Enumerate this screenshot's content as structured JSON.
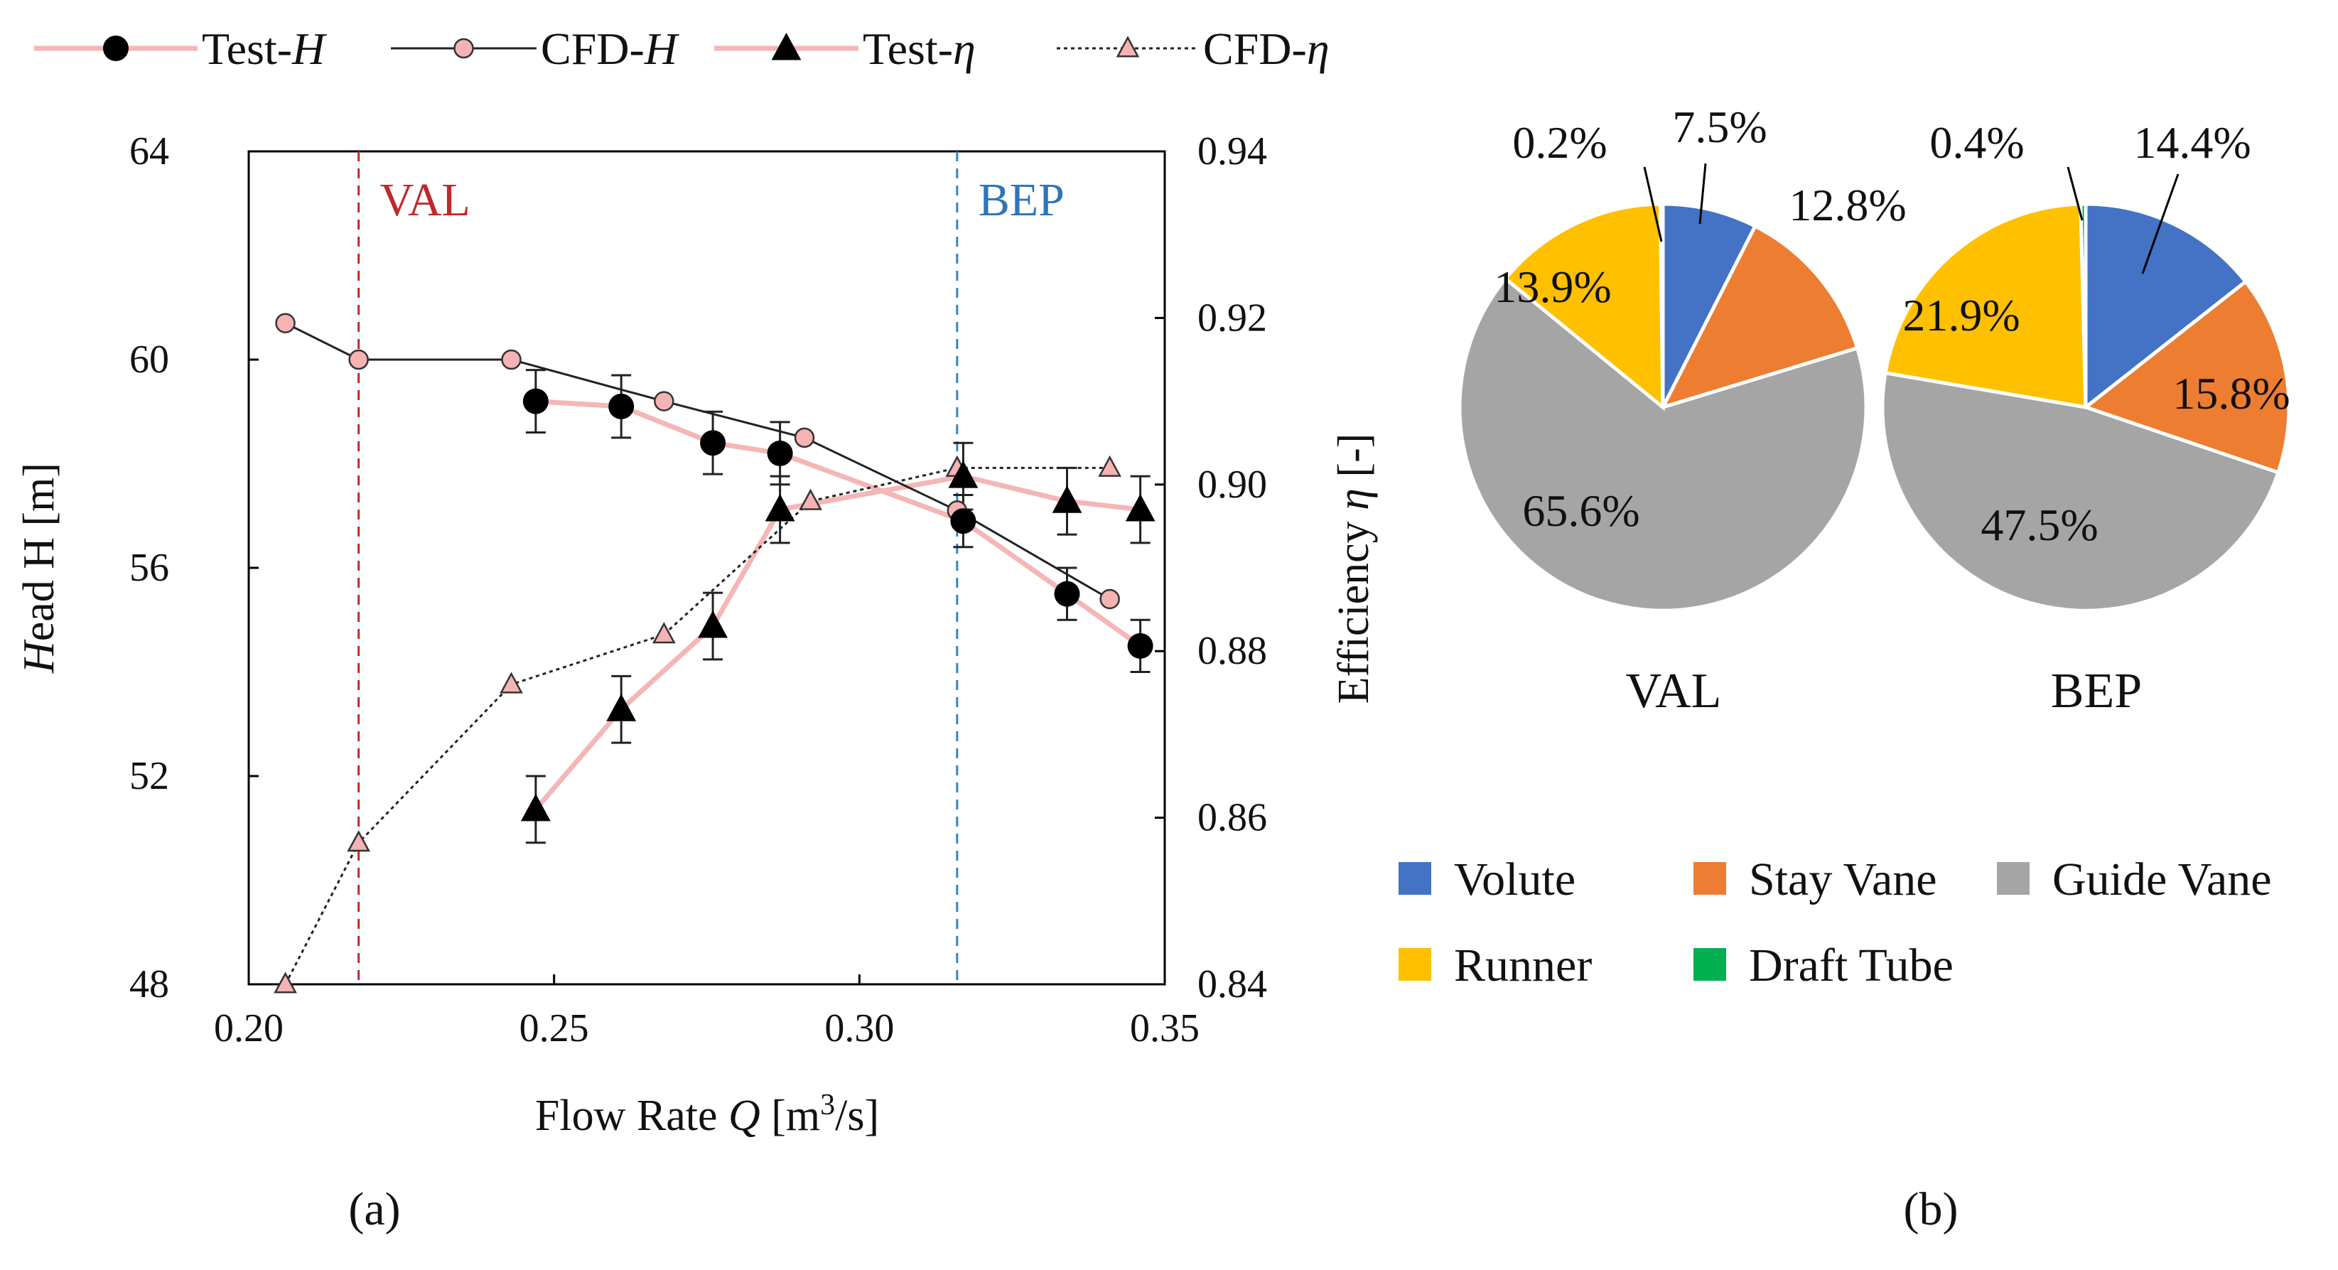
{
  "colors": {
    "volute": "#4472C4",
    "stay_vane": "#ED7D31",
    "guide_vane": "#A5A5A5",
    "runner": "#FFC000",
    "draft_tube": "#00B050",
    "test_line": "#F4B6B6",
    "val_line": "#C0282D",
    "bep_line": "#2E86C9",
    "val_label": "#C0282D",
    "bep_label": "#2E75B6"
  },
  "chart_data": [
    {
      "type": "line",
      "panel_label": "(a)",
      "xlabel": "Flow Rate Q [m3/s]",
      "ylabel": "Head H [m]",
      "y2label": "Efficiency η [-]",
      "xlim": [
        0.2,
        0.35
      ],
      "ylim": [
        48,
        64
      ],
      "y2lim": [
        0.84,
        0.94
      ],
      "x_ticks": [
        "0.20",
        "0.25",
        "0.30",
        "0.35"
      ],
      "y_ticks": [
        "48",
        "52",
        "56",
        "60",
        "64"
      ],
      "y2_ticks": [
        "0.84",
        "0.86",
        "0.88",
        "0.90",
        "0.92",
        "0.94"
      ],
      "legend": [
        "Test-H",
        "CFD-H",
        "Test-η",
        "CFD-η"
      ],
      "vlines": [
        {
          "label": "VAL",
          "x": 0.218
        },
        {
          "label": "BEP",
          "x": 0.316
        }
      ],
      "series": [
        {
          "name": "Test-H",
          "axis": "left",
          "x": [
            0.247,
            0.261,
            0.276,
            0.287,
            0.317,
            0.334,
            0.346
          ],
          "values": [
            59.2,
            59.1,
            58.4,
            58.2,
            56.9,
            55.5,
            54.5
          ],
          "err": [
            0.6,
            0.6,
            0.6,
            0.6,
            0.5,
            0.5,
            0.5
          ]
        },
        {
          "name": "CFD-H",
          "axis": "left",
          "x": [
            0.206,
            0.218,
            0.243,
            0.268,
            0.291,
            0.316,
            0.341
          ],
          "values": [
            60.7,
            60.0,
            60.0,
            59.2,
            58.5,
            57.1,
            55.4
          ]
        },
        {
          "name": "Test-η",
          "axis": "right",
          "x": [
            0.247,
            0.261,
            0.276,
            0.287,
            0.317,
            0.334,
            0.346
          ],
          "values": [
            0.861,
            0.873,
            0.883,
            0.897,
            0.901,
            0.898,
            0.897
          ],
          "err": [
            0.004,
            0.004,
            0.004,
            0.004,
            0.004,
            0.004,
            0.004
          ]
        },
        {
          "name": "CFD-η",
          "axis": "right",
          "x": [
            0.206,
            0.218,
            0.243,
            0.268,
            0.292,
            0.316,
            0.341
          ],
          "values": [
            0.84,
            0.857,
            0.876,
            0.882,
            0.898,
            0.902,
            0.902
          ]
        }
      ]
    },
    {
      "type": "pie",
      "title": "VAL",
      "labels": [
        "Volute",
        "Stay Vane",
        "Guide Vane",
        "Runner",
        "Draft Tube"
      ],
      "values": [
        7.5,
        12.8,
        65.6,
        13.9,
        0.2
      ],
      "value_labels": [
        "7.5%",
        "12.8%",
        "65.6%",
        "13.9%",
        "0.2%"
      ]
    },
    {
      "type": "pie",
      "title": "BEP",
      "labels": [
        "Volute",
        "Stay Vane",
        "Guide Vane",
        "Runner",
        "Draft Tube"
      ],
      "values": [
        14.4,
        15.8,
        47.5,
        21.9,
        0.4
      ],
      "value_labels": [
        "14.4%",
        "15.8%",
        "47.5%",
        "21.9%",
        "0.4%"
      ]
    }
  ],
  "pie_legend": [
    "Volute",
    "Stay Vane",
    "Guide Vane",
    "Runner",
    "Draft Tube"
  ],
  "panel_b_label": "(b)"
}
